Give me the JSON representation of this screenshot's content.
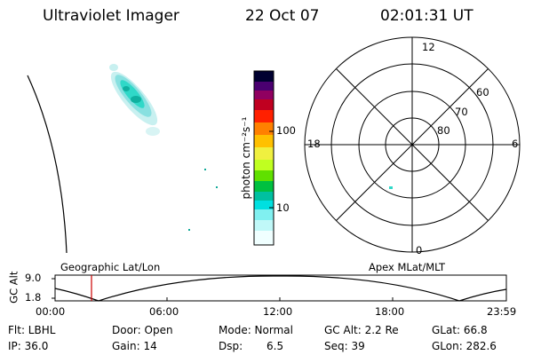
{
  "header": {
    "instrument": "Ultraviolet Imager",
    "date": "22 Oct 07",
    "time": "02:01:31 UT"
  },
  "colorbar": {
    "unit_label": "photon cm⁻²s⁻¹",
    "ticks": [
      "100",
      "10"
    ],
    "scale": "log",
    "colors": [
      "#000040",
      "#3a0060",
      "#7a0090",
      "#a00040",
      "#d00000",
      "#ff2000",
      "#ff7000",
      "#ffb000",
      "#ffe000",
      "#f0ff40",
      "#a0ff00",
      "#40e000",
      "#00c040",
      "#00d0a0",
      "#00e0e0",
      "#80f0f0",
      "#c0f8f8",
      "#f0ffff"
    ]
  },
  "polar_plot": {
    "mlt_labels": {
      "top": "12",
      "right": "6",
      "bottom": "0",
      "left": "18"
    },
    "lat_labels": [
      "60",
      "70",
      "80"
    ]
  },
  "altitude_panel": {
    "ylabel": "GC Alt",
    "yticks": [
      "9.0",
      "1.8"
    ],
    "left_title": "Geographic Lat/Lon",
    "right_title": "Apex  MLat/MLT",
    "xticks": [
      "00:00",
      "06:00",
      "12:00",
      "18:00",
      "23:59"
    ],
    "marker_color": "#cc0000"
  },
  "status": {
    "filter": "Flt: LBHL",
    "door": "Door: Open",
    "mode": "Mode: Normal",
    "gc_alt": "GC Alt: 2.2 Re",
    "glat": "GLat:  66.8",
    "ip": "IP: 36.0",
    "gain": "Gain: 14",
    "dsp_label": "Dsp:",
    "dsp_value": "6.5",
    "seq": "Seq: 39",
    "glon": "GLon: 282.6"
  }
}
